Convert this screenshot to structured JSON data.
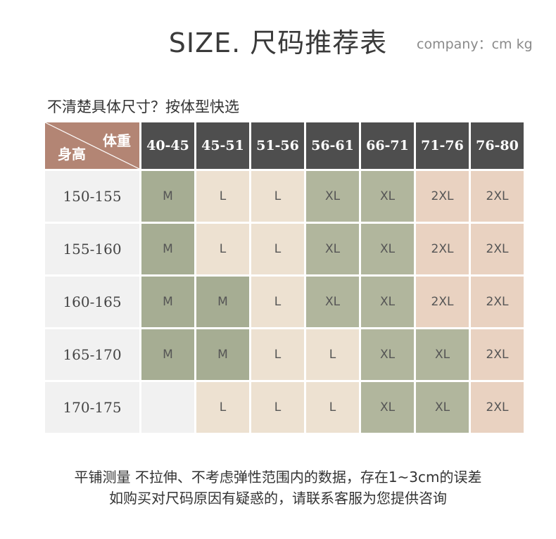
{
  "title": "SIZE. 尺码推荐表",
  "unit_note": "company：cm kg",
  "subtitle": "不清楚具体尺寸？按体型快选",
  "corner": {
    "weight_label": "体重",
    "height_label": "身高"
  },
  "weight_ranges": [
    "40-45",
    "45-51",
    "51-56",
    "56-61",
    "66-71",
    "71-76",
    "76-80"
  ],
  "rows": [
    {
      "height": "150-155",
      "sizes": [
        "M",
        "L",
        "L",
        "XL",
        "XL",
        "2XL",
        "2XL"
      ]
    },
    {
      "height": "155-160",
      "sizes": [
        "M",
        "L",
        "L",
        "XL",
        "XL",
        "2XL",
        "2XL"
      ]
    },
    {
      "height": "160-165",
      "sizes": [
        "M",
        "M",
        "L",
        "XL",
        "XL",
        "2XL",
        "2XL"
      ]
    },
    {
      "height": "165-170",
      "sizes": [
        "M",
        "M",
        "L",
        "L",
        "XL",
        "XL",
        "2XL"
      ]
    },
    {
      "height": "170-175",
      "sizes": [
        "",
        "L",
        "L",
        "L",
        "XL",
        "XL",
        "2XL"
      ]
    }
  ],
  "colors": {
    "M": "#a6ad93",
    "L": "#ede1d1",
    "XL": "#b1b69d",
    "2XL": "#e9d2c1",
    "empty": "#f1f1f1",
    "header": "#4e4e4e",
    "corner": "#b38574"
  },
  "notes": [
    "平铺测量 不拉伸、不考虑弹性范围内的数据，存在1~3cm的误差",
    "如购买对尺码原因有疑惑的，请联系客服为您提供咨询"
  ]
}
